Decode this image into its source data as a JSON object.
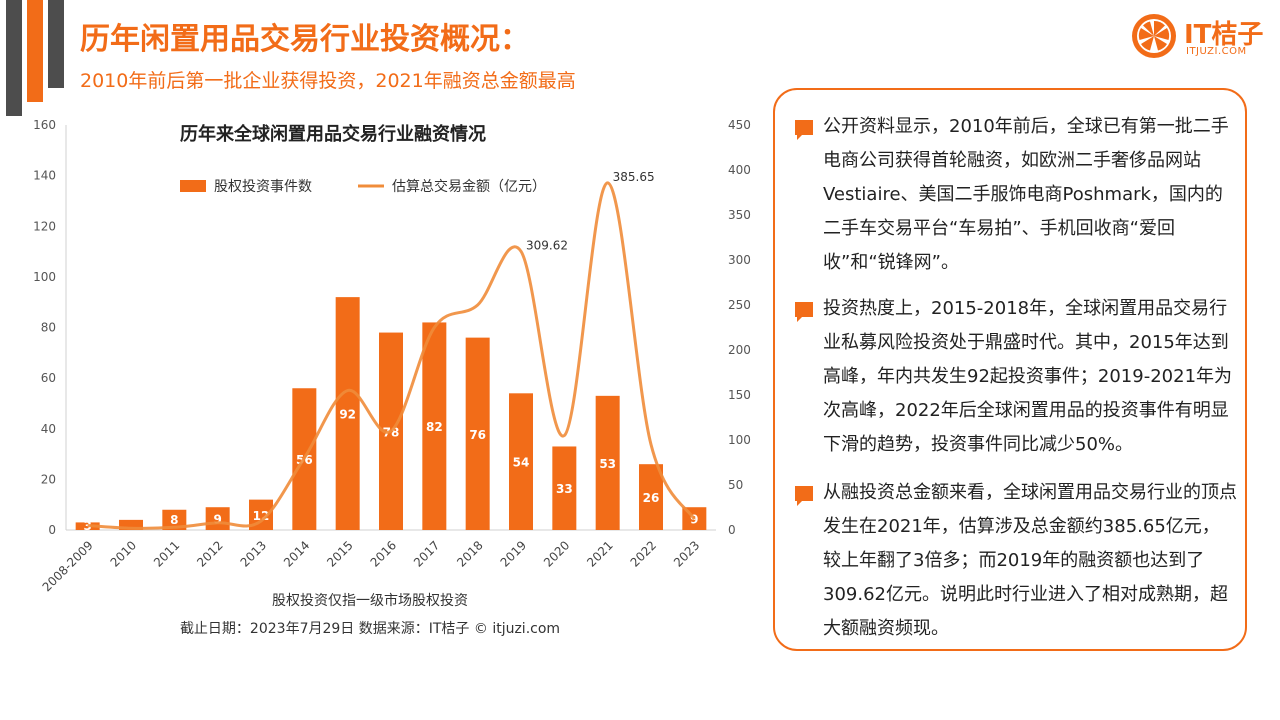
{
  "header": {
    "title": "历年闲置用品交易行业投资概况：",
    "subtitle": "2010年前后第一批企业获得投资，2021年融资总金额最高"
  },
  "logo": {
    "name": "IT桔子",
    "domain": "ITJUZI.COM"
  },
  "colors": {
    "accent": "#f26c18",
    "dark": "#4d4d4d",
    "bar": "#f26c18",
    "line": "#f08c3a"
  },
  "chart_data": {
    "type": "bar",
    "title": "历年来全球闲置用品交易行业融资情况",
    "categories": [
      "2008-2009",
      "2010",
      "2011",
      "2012",
      "2013",
      "2014",
      "2015",
      "2016",
      "2017",
      "2018",
      "2019",
      "2020",
      "2021",
      "2022",
      "2023"
    ],
    "series": [
      {
        "name": "股权投资事件数",
        "type": "bar",
        "axis": "left",
        "values": [
          3,
          4,
          8,
          9,
          12,
          56,
          92,
          78,
          82,
          76,
          54,
          33,
          53,
          26,
          9
        ],
        "labels": [
          "3",
          "",
          "8",
          "9",
          "12",
          "56",
          "92",
          "78",
          "82",
          "76",
          "54",
          "33",
          "53",
          "26",
          "9"
        ]
      },
      {
        "name": "估算总交易金额（亿元）",
        "type": "line",
        "axis": "right",
        "values": [
          5,
          2,
          3,
          8,
          10,
          80,
          155,
          110,
          225,
          250,
          309.62,
          105,
          385.65,
          95,
          12
        ],
        "point_labels": [
          {
            "index": 10,
            "text": "309.62"
          },
          {
            "index": 12,
            "text": "385.65"
          }
        ]
      }
    ],
    "ylim_left": [
      0,
      160
    ],
    "yticks_left": [
      "0",
      "20",
      "40",
      "60",
      "80",
      "100",
      "120",
      "140",
      "160"
    ],
    "ylim_right": [
      0,
      450
    ],
    "yticks_right": [
      "0",
      "50",
      "100",
      "150",
      "200",
      "250",
      "300",
      "350",
      "400",
      "450"
    ],
    "legend_position": "top",
    "grid": false
  },
  "notes": {
    "line1": "股权投资仅指一级市场股权投资",
    "line2": "截止日期：2023年7月29日    数据来源：IT桔子 © itjuzi.com"
  },
  "panel": {
    "paragraphs": [
      "公开资料显示，2010年前后，全球已有第一批二手电商公司获得首轮融资，如欧洲二手奢侈品网站Vestiaire、美国二手服饰电商Poshmark，国内的二手车交易平台“车易拍”、手机回收商“爱回收”和“锐锋网”。",
      "投资热度上，2015-2018年，全球闲置用品交易行业私募风险投资处于鼎盛时代。其中，2015年达到高峰，年内共发生92起投资事件；2019-2021年为次高峰，2022年后全球闲置用品的投资事件有明显下滑的趋势，投资事件同比减少50%。",
      "从融投资总金额来看，全球闲置用品交易行业的顶点发生在2021年，估算涉及总金额约385.65亿元，较上年翻了3倍多；而2019年的融资额也达到了309.62亿元。说明此时行业进入了相对成熟期，超大额融资频现。"
    ]
  }
}
